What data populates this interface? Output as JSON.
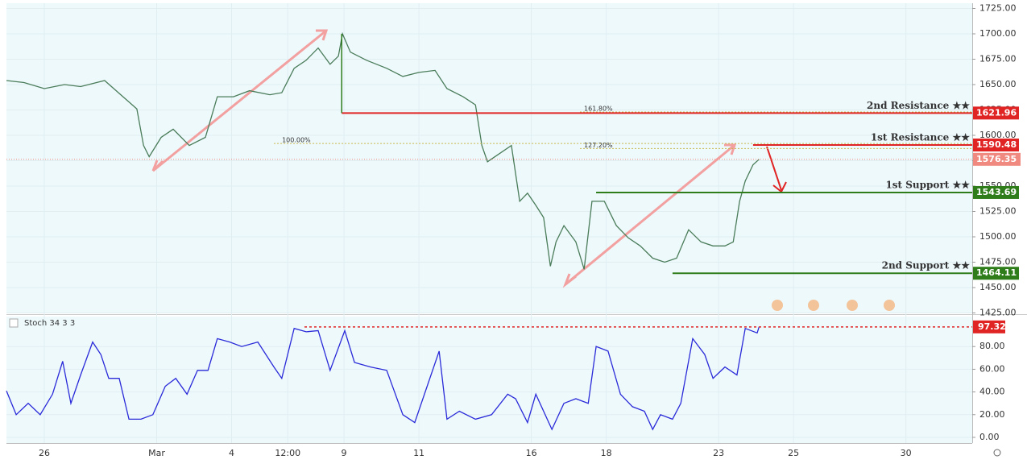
{
  "chart_data": [
    {
      "type": "line",
      "color": "#4a7c59",
      "x": [
        -1.01,
        -0.54,
        0,
        0.54,
        0.97,
        1.61,
        2.04,
        2.47,
        2.65,
        2.8,
        3.12,
        3.44,
        3.87,
        4.3,
        4.62,
        5.05,
        5.48,
        6.02,
        6.34,
        6.67,
        6.99,
        7.31,
        7.63,
        7.85,
        7.96,
        8.17,
        8.6,
        9.14,
        9.57,
        10,
        10.43,
        10.75,
        11.18,
        11.51,
        11.68,
        11.83,
        12.15,
        12.47,
        12.69,
        12.9,
        13.12,
        13.33,
        13.51,
        13.66,
        13.87,
        14.19,
        14.41,
        14.62,
        14.95,
        15.27,
        15.59,
        15.91,
        16.24,
        16.56,
        16.88,
        17.2,
        17.53,
        17.85,
        18.17,
        18.39,
        18.56,
        18.71,
        18.92,
        19.08
      ],
      "values": [
        1654,
        1652,
        1646,
        1650,
        1648,
        1654,
        1640,
        1626,
        1590,
        1579,
        1598,
        1606,
        1590,
        1598,
        1638,
        1638,
        1644,
        1640,
        1642,
        1666,
        1674,
        1686,
        1670,
        1678,
        1700,
        1682,
        1674,
        1666,
        1658,
        1662,
        1664,
        1646,
        1638,
        1630,
        1590,
        1574,
        1582,
        1590,
        1535,
        1543,
        1531,
        1519,
        1471,
        1495,
        1511,
        1495,
        1468,
        1535,
        1535,
        1511,
        1499,
        1491,
        1479,
        1475,
        1479,
        1507,
        1495,
        1491,
        1491,
        1495,
        1535,
        1555,
        1571,
        1576.35
      ],
      "xlim": [
        -1.01,
        24.77
      ],
      "xticks": [
        {
          "value": 0,
          "label": "26"
        },
        {
          "value": 3,
          "label": "Mar"
        },
        {
          "value": 5,
          "label": "4"
        },
        {
          "value": 6.5,
          "label": "12:00"
        },
        {
          "value": 8,
          "label": "9"
        },
        {
          "value": 10,
          "label": "11"
        },
        {
          "value": 13,
          "label": "16"
        },
        {
          "value": 15,
          "label": "18"
        },
        {
          "value": 18,
          "label": "23"
        },
        {
          "value": 20,
          "label": "25"
        },
        {
          "value": 23,
          "label": "30"
        }
      ],
      "ylim": [
        1425,
        1725
      ],
      "yticks": [
        {
          "value": 1425,
          "label": "1425.00"
        },
        {
          "value": 1450,
          "label": "1450.00"
        },
        {
          "value": 1475,
          "label": "1475.00"
        },
        {
          "value": 1500,
          "label": "1500.00"
        },
        {
          "value": 1525,
          "label": "1525.00"
        },
        {
          "value": 1550,
          "label": "1550.00"
        },
        {
          "value": 1575,
          "label": "1575.00"
        },
        {
          "value": 1600,
          "label": "1600.00"
        },
        {
          "value": 1625,
          "label": "1625.00"
        },
        {
          "value": 1650,
          "label": "1650.00"
        },
        {
          "value": 1675,
          "label": "1675.00"
        },
        {
          "value": 1700,
          "label": "1700.00"
        },
        {
          "value": 1725,
          "label": "1725.00"
        }
      ],
      "last_price": 1576.35,
      "levels": [
        {
          "label": "2nd Resistance ★★",
          "value": 1621.96,
          "color": "#e02424",
          "x_start": 7.94
        },
        {
          "label": "1st Resistance ★★",
          "value": 1590.48,
          "color": "#e02424",
          "x_start": 18.92
        },
        {
          "label": "1st Support ★★",
          "value": 1543.69,
          "color": "#2e7d1a",
          "x_start": 14.73
        },
        {
          "label": "2nd Support ★★",
          "value": 1464.11,
          "color": "#2e7d1a",
          "x_start": 16.77
        }
      ],
      "fib": [
        {
          "label": "161.80%",
          "value": 1623,
          "x_start": 14.3
        },
        {
          "label": "100.00%",
          "value": 1592,
          "x_start": 6.13
        },
        {
          "label": "127.20%",
          "value": 1587,
          "x_start": 14.3
        }
      ]
    },
    {
      "type": "line",
      "title": "Stoch 34 3 3",
      "color": "#2a2ad8",
      "x": [
        -1.01,
        -0.75,
        -0.43,
        -0.11,
        0.22,
        0.49,
        0.71,
        0.97,
        1.29,
        1.51,
        1.72,
        2,
        2.26,
        2.58,
        2.9,
        3.23,
        3.51,
        3.81,
        4.09,
        4.37,
        4.62,
        4.95,
        5.27,
        5.7,
        6.13,
        6.34,
        6.67,
        6.99,
        7.31,
        7.63,
        8.02,
        8.28,
        8.71,
        9.14,
        9.57,
        9.89,
        10.22,
        10.54,
        10.75,
        11.08,
        11.51,
        11.94,
        12.37,
        12.58,
        12.9,
        13.12,
        13.55,
        13.87,
        14.19,
        14.52,
        14.73,
        15.05,
        15.38,
        15.7,
        16.02,
        16.24,
        16.45,
        16.77,
        16.99,
        17.31,
        17.63,
        17.85,
        18.17,
        18.49,
        18.71,
        19.03,
        19.08
      ],
      "values": [
        41,
        20,
        30,
        20,
        38,
        67,
        30,
        55,
        84,
        73,
        52,
        52,
        16,
        16,
        20,
        45,
        52,
        38,
        59,
        59,
        87,
        84,
        80,
        84,
        62,
        52,
        96,
        93,
        94,
        59,
        94,
        66,
        62,
        59,
        20,
        13,
        45,
        76,
        16,
        23,
        16,
        20,
        38,
        34,
        13,
        38,
        7,
        30,
        34,
        30,
        80,
        76,
        38,
        27,
        23,
        7,
        20,
        16,
        30,
        87,
        73,
        52,
        62,
        55,
        96,
        92,
        97.32
      ],
      "xlim": [
        -1.01,
        24.77
      ],
      "ylim": [
        -5,
        105
      ],
      "yticks": [
        {
          "value": 0,
          "label": "0.00"
        },
        {
          "value": 20,
          "label": "20.00"
        },
        {
          "value": 40,
          "label": "40.00"
        },
        {
          "value": 60,
          "label": "60.00"
        },
        {
          "value": 80,
          "label": "80.00"
        }
      ],
      "level": 97.32
    }
  ]
}
